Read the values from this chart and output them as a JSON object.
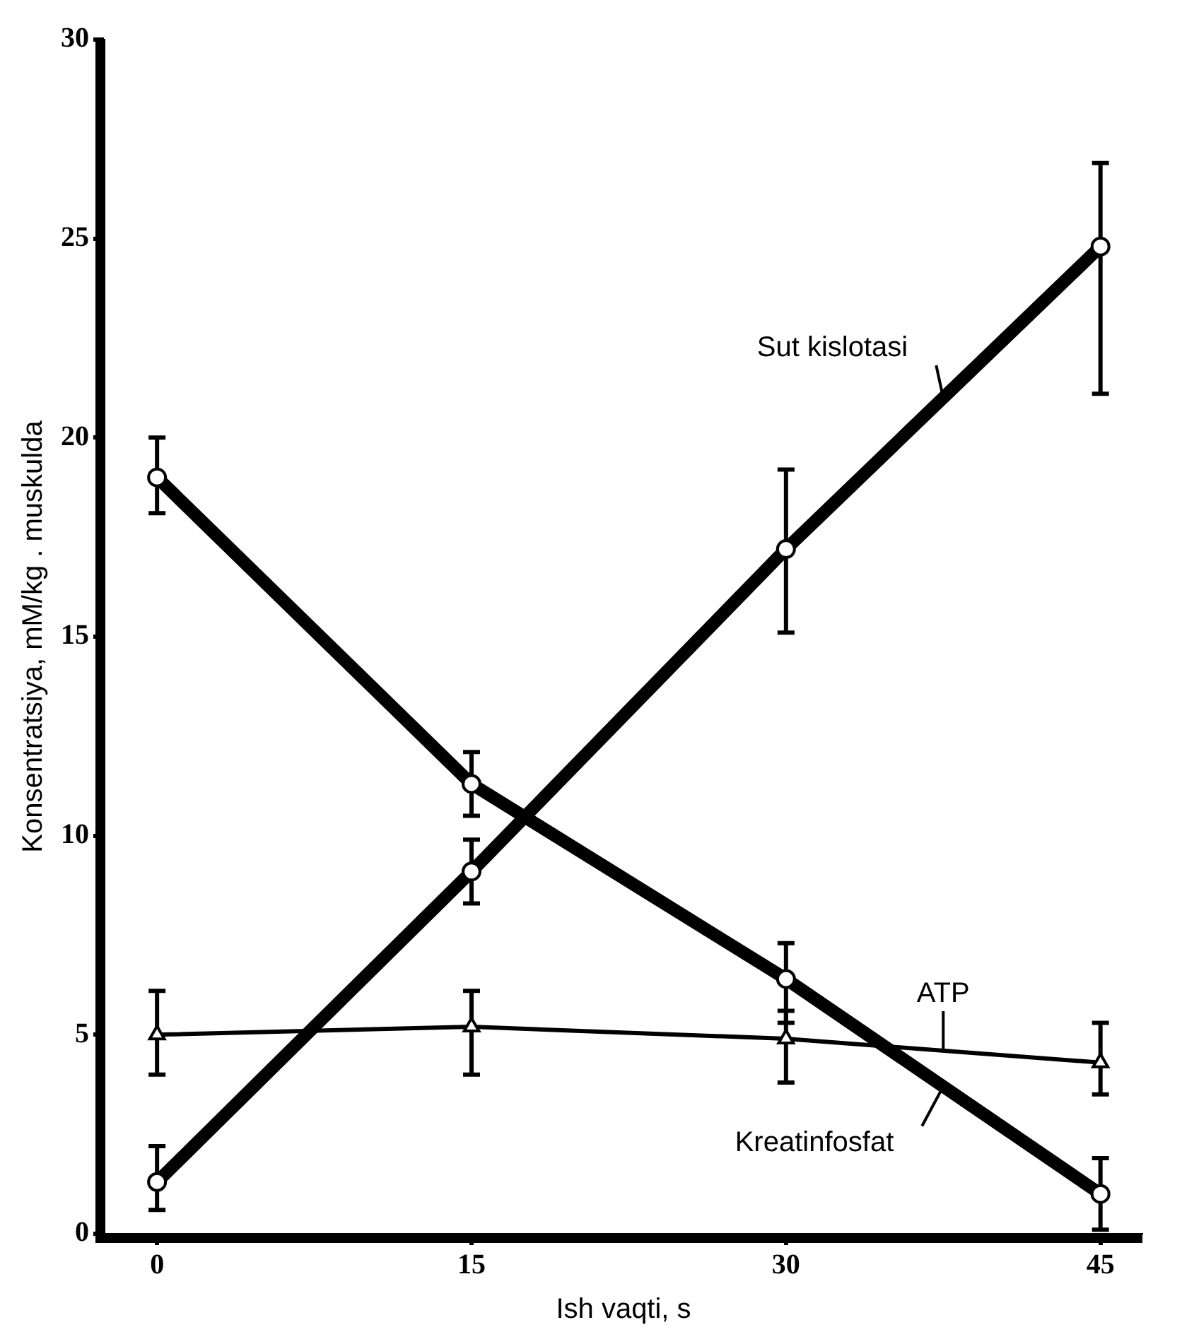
{
  "chart_data": {
    "type": "line",
    "xlabel": "Ish vaqti, s",
    "ylabel": "Konsentratsiya, mM/kg . muskulda",
    "x": [
      0,
      15,
      30,
      45
    ],
    "xlim": [
      -2.5,
      47
    ],
    "xticks": [
      0,
      15,
      30,
      45
    ],
    "ylim": [
      0,
      30
    ],
    "yticks": [
      0,
      5,
      10,
      15,
      20,
      25,
      30
    ],
    "grid": false,
    "legend": false,
    "series": [
      {
        "name": "Sut kislotasi",
        "color": "#000000",
        "marker": "circle",
        "values": [
          1.3,
          9.1,
          17.2,
          24.8
        ],
        "errors": [
          [
            0.6,
            2.2
          ],
          [
            8.3,
            9.9
          ],
          [
            15.1,
            19.2
          ],
          [
            21.1,
            26.9
          ]
        ]
      },
      {
        "name": "Kreatinfosfat",
        "color": "#000000",
        "marker": "circle",
        "values": [
          19.0,
          11.3,
          6.4,
          1.0
        ],
        "errors": [
          [
            18.1,
            20.0
          ],
          [
            10.5,
            12.1
          ],
          [
            5.3,
            7.3
          ],
          [
            0.1,
            1.9
          ]
        ]
      },
      {
        "name": "ATP",
        "color": "#000000",
        "marker": "triangle",
        "values": [
          5.0,
          5.2,
          4.9,
          4.3
        ],
        "errors": [
          [
            4.0,
            6.1
          ],
          [
            4.0,
            6.1
          ],
          [
            3.8,
            5.6
          ],
          [
            3.5,
            5.3
          ]
        ]
      }
    ]
  }
}
